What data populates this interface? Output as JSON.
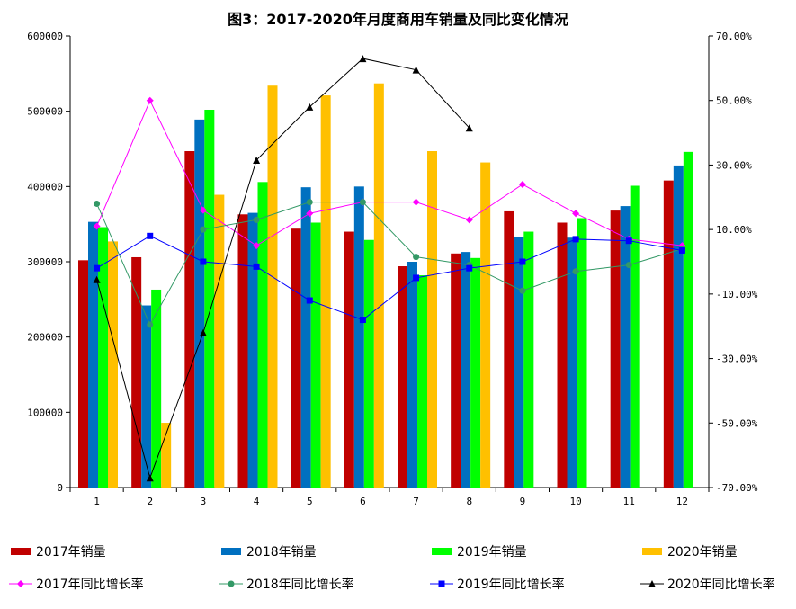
{
  "title": "图3：2017-2020年月度商用车销量及同比变化情况",
  "chart_data": {
    "type": "bar",
    "categories": [
      "1",
      "2",
      "3",
      "4",
      "5",
      "6",
      "7",
      "8",
      "9",
      "10",
      "11",
      "12"
    ],
    "y_left": {
      "lim": [
        0,
        600000
      ],
      "ticks": [
        "0",
        "100000",
        "200000",
        "300000",
        "400000",
        "500000",
        "600000"
      ]
    },
    "y_right": {
      "lim": [
        -70,
        70
      ],
      "unit": "%",
      "ticks": [
        "-70.00%",
        "-50.00%",
        "-30.00%",
        "-10.00%",
        "10.00%",
        "30.00%",
        "50.00%",
        "70.00%"
      ]
    },
    "bar_series": [
      {
        "name": "2017年销量",
        "color": "#C00000",
        "values": [
          302000,
          306000,
          447000,
          363000,
          344000,
          340000,
          294000,
          311000,
          367000,
          352000,
          368000,
          408000
        ]
      },
      {
        "name": "2018年销量",
        "color": "#0070C0",
        "values": [
          353000,
          242000,
          489000,
          365000,
          399000,
          400000,
          300000,
          313000,
          333000,
          332000,
          374000,
          428000
        ]
      },
      {
        "name": "2019年销量",
        "color": "#00FF00",
        "values": [
          346000,
          263000,
          502000,
          406000,
          352000,
          329000,
          282000,
          305000,
          340000,
          358000,
          401000,
          446000
        ]
      },
      {
        "name": "2020年销量",
        "color": "#FFC000",
        "values": [
          327000,
          86000,
          389000,
          534000,
          521000,
          537000,
          447000,
          432000,
          null,
          null,
          null,
          null
        ]
      }
    ],
    "line_series": [
      {
        "name": "2017年同比增长率",
        "color": "#FF00FF",
        "marker": "diamond",
        "values": [
          11,
          50,
          16,
          5,
          15,
          18.5,
          18.5,
          13,
          24,
          15,
          7,
          5
        ]
      },
      {
        "name": "2018年同比增长率",
        "color": "#339966",
        "marker": "circle",
        "values": [
          18,
          -19.5,
          10,
          13,
          18.5,
          18.5,
          1.5,
          -1,
          -9,
          -3,
          -1,
          4
        ]
      },
      {
        "name": "2019年同比增长率",
        "color": "#0000FF",
        "marker": "square",
        "values": [
          -2,
          8,
          0,
          -1.5,
          -12,
          -18,
          -5,
          -2,
          0,
          7,
          6.5,
          3.5
        ]
      },
      {
        "name": "2020年同比增长率",
        "color": "#000000",
        "marker": "triangle",
        "values": [
          -5.5,
          -67,
          -22,
          31.5,
          48,
          63,
          59.5,
          41.5,
          null,
          null,
          null,
          null
        ]
      }
    ],
    "grid": false,
    "legend_position": "bottom"
  }
}
